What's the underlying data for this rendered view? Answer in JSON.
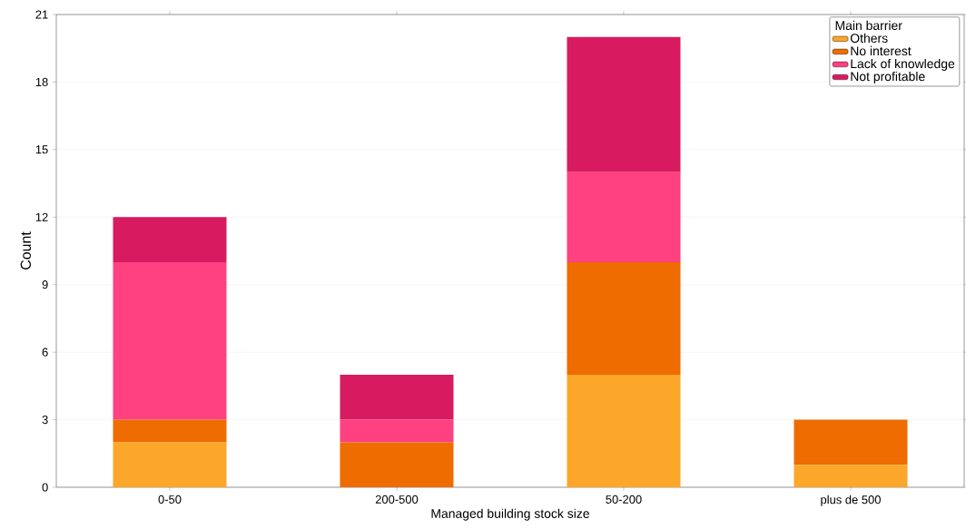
{
  "chart_data": {
    "type": "bar",
    "stacked": true,
    "xlabel": "Managed building stock size",
    "ylabel": "Count",
    "legend_title": "Main barrier",
    "categories": [
      "0-50",
      "200-500",
      "50-200",
      "plus de 500"
    ],
    "series": [
      {
        "name": "Others",
        "color": "#fca62a",
        "values": [
          2,
          0,
          5,
          1
        ]
      },
      {
        "name": "No interest",
        "color": "#ee6c00",
        "values": [
          1,
          2,
          5,
          2
        ]
      },
      {
        "name": "Lack of knowledge",
        "color": "#ff4081",
        "values": [
          7,
          1,
          4,
          0
        ]
      },
      {
        "name": "Not profitable",
        "color": "#d81b60",
        "values": [
          2,
          2,
          6,
          0
        ]
      }
    ],
    "ylim": [
      0,
      21
    ],
    "yticks": [
      0,
      3,
      6,
      9,
      12,
      15,
      18,
      21
    ],
    "grid": "y",
    "legend": "top right"
  }
}
